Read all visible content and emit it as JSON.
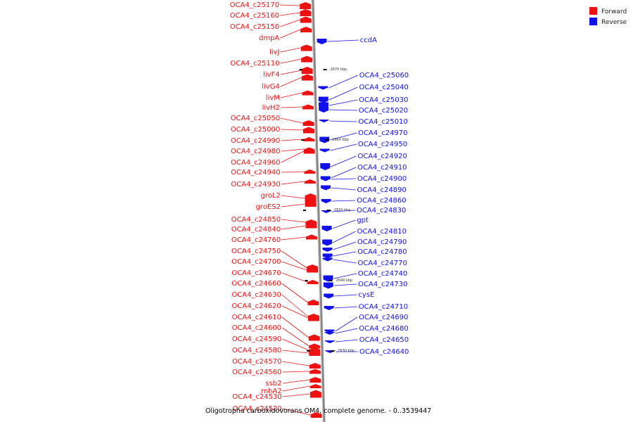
{
  "caption": "Oligotropha carboxidovorans OM4, complete genome. - 0..3539447",
  "legend": [
    {
      "label": "Forward",
      "color": "#ee1111"
    },
    {
      "label": "Reverse",
      "color": "#1111ee"
    }
  ],
  "colors": {
    "forward": "#ee1111",
    "reverse": "#1111ee",
    "backbone": "#888888"
  },
  "scale_ticks": [
    "2670 kbp",
    "2660 kbp",
    "2650 kbp",
    "2640 kbp",
    "2630 kbp"
  ],
  "forward_genes": [
    "OCA4_c25170",
    "OCA4_c25160",
    "OCA4_c25150",
    "dmpA",
    "livJ",
    "OCA4_c25110",
    "livF4",
    "livG4",
    "livM",
    "livH2",
    "OCA4_c25050",
    "OCA4_c25000",
    "OCA4_c24990",
    "OCA4_c24980",
    "OCA4_c24960",
    "OCA4_c24940",
    "OCA4_c24930",
    "groL2",
    "groES2",
    "OCA4_c24850",
    "OCA4_c24840",
    "OCA4_c24760",
    "OCA4_c24750",
    "OCA4_c24700",
    "OCA4_c24670",
    "OCA4_c24660",
    "OCA4_c24630",
    "OCA4_c24620",
    "OCA4_c24610",
    "OCA4_c24600",
    "OCA4_c24590",
    "OCA4_c24580",
    "OCA4_c24570",
    "OCA4_c24560",
    "ssb2",
    "rnhA2",
    "OCA4_c24530",
    "OCA4_c24520"
  ],
  "reverse_genes": [
    "ccdA",
    "OCA4_c25060",
    "OCA4_c25040",
    "OCA4_c25030",
    "OCA4_c25020",
    "OCA4_c25010",
    "OCA4_c24970",
    "OCA4_c24950",
    "OCA4_c24920",
    "OCA4_c24910",
    "OCA4_c24900",
    "OCA4_c24890",
    "OCA4_c24860",
    "OCA4_c24830",
    "gpt",
    "OCA4_c24810",
    "OCA4_c24790",
    "OCA4_c24780",
    "OCA4_c24770",
    "OCA4_c24740",
    "OCA4_c24730",
    "cysE",
    "OCA4_c24710",
    "OCA4_c24690",
    "OCA4_c24680",
    "OCA4_c24650",
    "OCA4_c24640"
  ]
}
